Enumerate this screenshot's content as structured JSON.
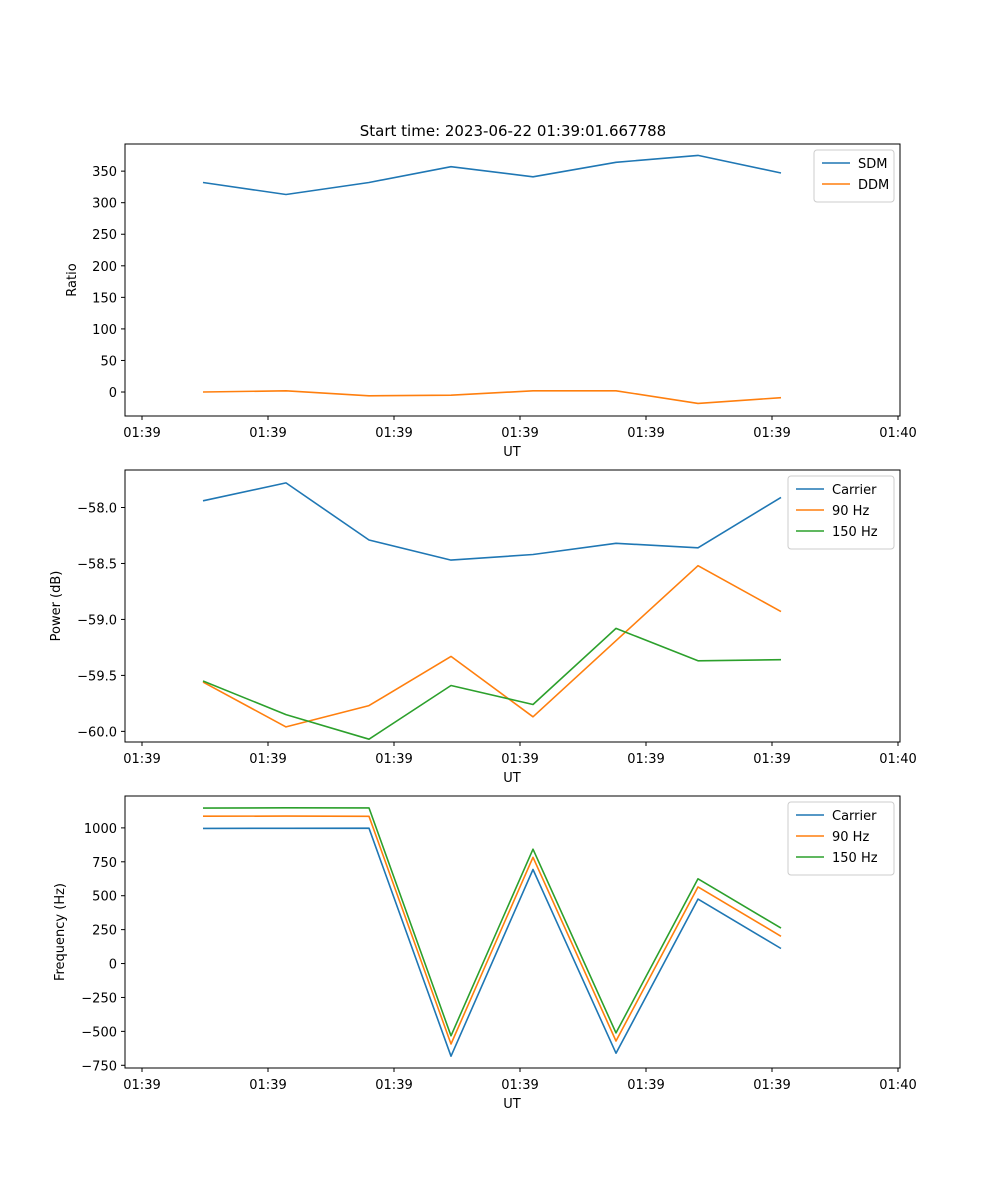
{
  "figure": {
    "title": "Start time: 2023-06-22 01:39:01.667788"
  },
  "chart_data": [
    {
      "type": "line",
      "title": "Start time: 2023-06-22 01:39:01.667788",
      "xlabel": "UT",
      "ylabel": "Ratio",
      "x_tick_labels": [
        "01:39",
        "01:39",
        "01:39",
        "01:39",
        "01:39",
        "01:39",
        "01:39",
        "01:40"
      ],
      "y_ticks": [
        0,
        50,
        100,
        150,
        200,
        250,
        300,
        350
      ],
      "ylim": [
        -38,
        393
      ],
      "legend_position": "upper right",
      "series": [
        {
          "name": "SDM",
          "color": "#1f77b4",
          "values": [
            332,
            313,
            332,
            357,
            341,
            364,
            375,
            347
          ]
        },
        {
          "name": "DDM",
          "color": "#ff7f0e",
          "values": [
            0,
            2,
            -6,
            -5,
            2,
            2,
            -18,
            -9
          ]
        }
      ]
    },
    {
      "type": "line",
      "xlabel": "UT",
      "ylabel": "Power (dB)",
      "x_tick_labels": [
        "01:39",
        "01:39",
        "01:39",
        "01:39",
        "01:39",
        "01:39",
        "01:39",
        "01:40"
      ],
      "y_ticks": [
        -60.0,
        -59.5,
        -59.0,
        -58.5,
        -58.0
      ],
      "y_tick_labels": [
        "−60.0",
        "−59.5",
        "−59.0",
        "−58.5",
        "−58.0"
      ],
      "ylim": [
        -60.095,
        -57.665
      ],
      "legend_position": "upper right",
      "series": [
        {
          "name": "Carrier",
          "color": "#1f77b4",
          "values": [
            -57.94,
            -57.78,
            -58.29,
            -58.47,
            -58.42,
            -58.32,
            -58.36,
            -57.91
          ]
        },
        {
          "name": "90 Hz",
          "color": "#ff7f0e",
          "values": [
            -59.56,
            -59.96,
            -59.77,
            -59.33,
            -59.87,
            -59.19,
            -58.52,
            -58.93
          ]
        },
        {
          "name": "150 Hz",
          "color": "#2ca02c",
          "values": [
            -59.55,
            -59.85,
            -60.07,
            -59.59,
            -59.76,
            -59.08,
            -59.37,
            -59.36
          ]
        }
      ]
    },
    {
      "type": "line",
      "xlabel": "UT",
      "ylabel": "Frequency (Hz)",
      "x_tick_labels": [
        "01:39",
        "01:39",
        "01:39",
        "01:39",
        "01:39",
        "01:39",
        "01:39",
        "01:40"
      ],
      "y_ticks": [
        -750,
        -500,
        -250,
        0,
        250,
        500,
        750,
        1000
      ],
      "y_tick_labels": [
        "−750",
        "−500",
        "−250",
        "0",
        "250",
        "500",
        "750",
        "1000"
      ],
      "ylim": [
        -770,
        1235
      ],
      "legend_position": "upper right",
      "series": [
        {
          "name": "Carrier",
          "color": "#1f77b4",
          "values": [
            996,
            997,
            998,
            -683,
            693,
            -661,
            475,
            111
          ]
        },
        {
          "name": "90 Hz",
          "color": "#ff7f0e",
          "values": [
            1086,
            1087,
            1085,
            -593,
            783,
            -571,
            565,
            201
          ]
        },
        {
          "name": "150 Hz",
          "color": "#2ca02c",
          "values": [
            1146,
            1148,
            1147,
            -533,
            843,
            -511,
            625,
            261
          ]
        }
      ]
    }
  ]
}
